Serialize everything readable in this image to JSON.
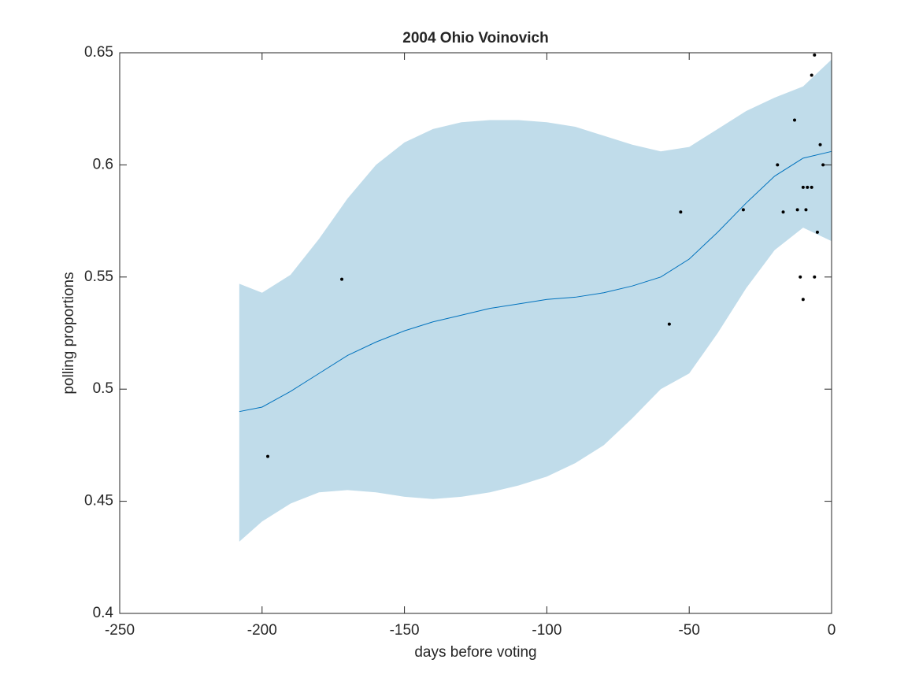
{
  "chart_data": {
    "type": "line",
    "title": "2004 Ohio Voinovich",
    "x_label": "days before voting",
    "y_label": "polling proportions",
    "xlim": [
      -250,
      0
    ],
    "xticks": [
      -250,
      -200,
      -150,
      -100,
      -50,
      0
    ],
    "ylim": [
      0.4,
      0.65
    ],
    "yticks": [
      0.4,
      0.45,
      0.5,
      0.55,
      0.6,
      0.65
    ],
    "band": {
      "color": "#c0dcea",
      "x": [
        -208,
        -200,
        -190,
        -180,
        -170,
        -160,
        -150,
        -140,
        -130,
        -120,
        -110,
        -100,
        -90,
        -80,
        -70,
        -60,
        -50,
        -40,
        -30,
        -20,
        -10,
        0
      ],
      "upper": [
        0.547,
        0.543,
        0.551,
        0.567,
        0.585,
        0.6,
        0.61,
        0.616,
        0.619,
        0.62,
        0.62,
        0.619,
        0.617,
        0.613,
        0.609,
        0.606,
        0.608,
        0.616,
        0.624,
        0.63,
        0.635,
        0.647
      ],
      "lower": [
        0.432,
        0.441,
        0.449,
        0.454,
        0.455,
        0.454,
        0.452,
        0.451,
        0.452,
        0.454,
        0.457,
        0.461,
        0.467,
        0.475,
        0.487,
        0.5,
        0.507,
        0.525,
        0.545,
        0.562,
        0.572,
        0.566
      ]
    },
    "line": {
      "color": "#0072bd",
      "x": [
        -208,
        -200,
        -190,
        -180,
        -170,
        -160,
        -150,
        -140,
        -130,
        -120,
        -110,
        -100,
        -90,
        -80,
        -70,
        -60,
        -50,
        -40,
        -30,
        -20,
        -10,
        0
      ],
      "values": [
        0.49,
        0.492,
        0.499,
        0.507,
        0.515,
        0.521,
        0.526,
        0.53,
        0.533,
        0.536,
        0.538,
        0.54,
        0.541,
        0.543,
        0.546,
        0.55,
        0.558,
        0.57,
        0.583,
        0.595,
        0.603,
        0.606
      ]
    },
    "points": {
      "color": "#000000",
      "x": [
        -198,
        -172,
        -57,
        -53,
        -31,
        -19,
        -17,
        -13,
        -12,
        -11,
        -10,
        -10,
        -9,
        -8.5,
        -7,
        -7,
        -6,
        -6,
        -5,
        -4,
        -3
      ],
      "values": [
        0.47,
        0.549,
        0.529,
        0.579,
        0.58,
        0.6,
        0.579,
        0.62,
        0.58,
        0.55,
        0.59,
        0.54,
        0.58,
        0.59,
        0.59,
        0.64,
        0.649,
        0.55,
        0.57,
        0.609,
        0.6
      ]
    }
  }
}
